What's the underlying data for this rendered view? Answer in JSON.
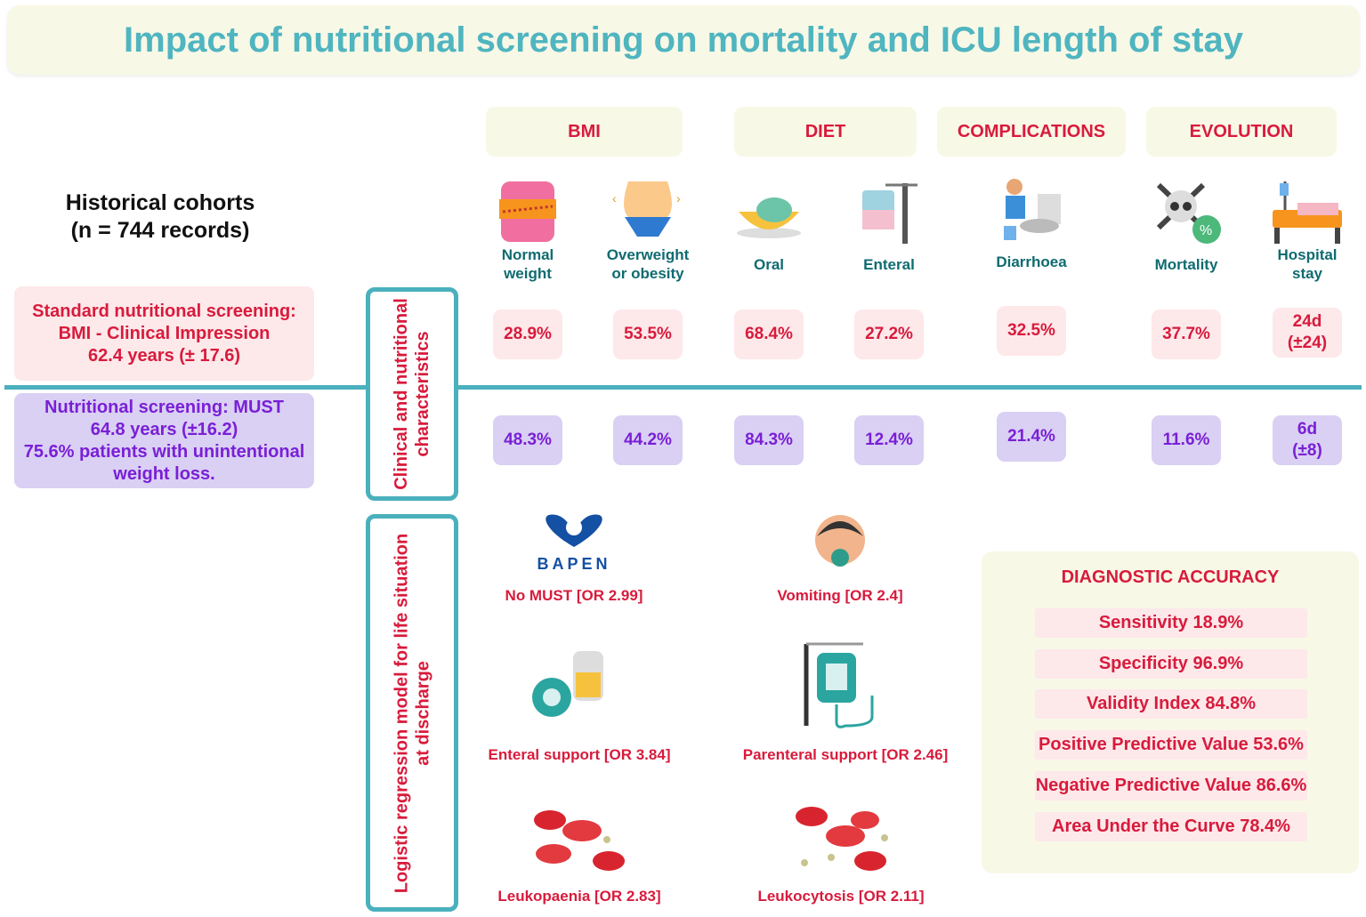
{
  "title": "Impact of nutritional screening on mortality and ICU length of stay",
  "headers": {
    "bmi": "BMI",
    "diet": "DIET",
    "complications": "COMPLICATIONS",
    "evolution": "EVOLUTION"
  },
  "cohort": {
    "line1": "Historical cohorts",
    "line2": "(n = 744 records)"
  },
  "columns": [
    {
      "label1": "Normal",
      "label2": "weight",
      "icon": "waist-measure-icon",
      "standard": "28.9%",
      "must": "48.3%"
    },
    {
      "label1": "Overweight",
      "label2": "or obesity",
      "icon": "belly-icon",
      "standard": "53.5%",
      "must": "44.2%"
    },
    {
      "label1": "Oral",
      "label2": "",
      "icon": "food-bowl-icon",
      "standard": "68.4%",
      "must": "84.3%"
    },
    {
      "label1": "Enteral",
      "label2": "",
      "icon": "feeding-bag-icon",
      "standard": "27.2%",
      "must": "12.4%"
    },
    {
      "label1": "Diarrhoea",
      "label2": "",
      "icon": "toilet-icon",
      "standard": "32.5%",
      "must": "21.4%"
    },
    {
      "label1": "Mortality",
      "label2": "",
      "icon": "skull-icon",
      "standard": "37.7%",
      "must": "11.6%"
    },
    {
      "label1": "Hospital",
      "label2": "stay",
      "icon": "hospital-bed-icon",
      "standard_a": "24d",
      "standard_b": "(±24)",
      "must_a": "6d",
      "must_b": "(±8)"
    }
  ],
  "groups": {
    "standard": {
      "l1": "Standard nutritional screening:",
      "l2": "BMI - Clinical Impression",
      "l3": "62.4 years (± 17.6)"
    },
    "must": {
      "l1": "Nutritional screening: MUST",
      "l2": "64.8 years (±16.2)",
      "l3": "75.6% patients with unintentional",
      "l4": "weight loss."
    }
  },
  "section_labels": {
    "clinical_1": "Clinical and nutritional",
    "clinical_2": "characteristics",
    "logistic_1": "Logistic regression model for life situation",
    "logistic_2": "at discharge"
  },
  "logistic": {
    "bapen_logo": "BAPEN",
    "no_must": "No MUST [OR 2.99]",
    "vomiting": "Vomiting [OR 2.4]",
    "enteral": "Enteral support [OR 3.84]",
    "parenteral": "Parenteral support [OR 2.46]",
    "leukopaenia": "Leukopaenia [OR 2.83]",
    "leukocytosis": "Leukocytosis [OR 2.11]"
  },
  "diagnostic": {
    "title": "DIAGNOSTIC ACCURACY",
    "rows": [
      "Sensitivity 18.9%",
      "Specificity 96.9%",
      "Validity Index 84.8%",
      "Positive Predictive Value 53.6%",
      "Negative Predictive Value 86.6%",
      "Area Under the Curve 78.4%"
    ]
  },
  "colors": {
    "red": "#d81b3c",
    "purple": "#7a1fd6",
    "teal": "#4ab0bd"
  }
}
